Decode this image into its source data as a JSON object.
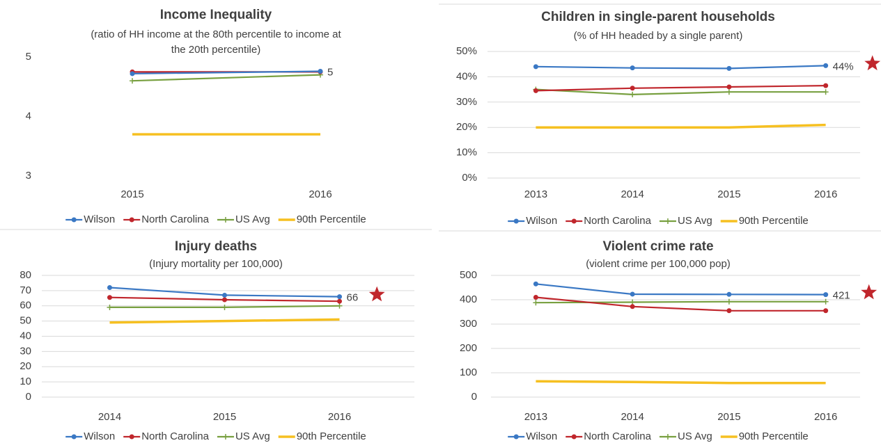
{
  "chart_data": [
    {
      "type": "line",
      "title": "Income Inequality",
      "subtitle": [
        "(ratio of HH income at the 80th percentile to income at",
        "the 20th percentile)"
      ],
      "categories": [
        "2015",
        "2016"
      ],
      "series": [
        {
          "name": "Wilson",
          "color": "#3a78c4",
          "marker": "circle",
          "values": [
            4.72,
            4.76
          ],
          "value_labels": [
            null,
            "5"
          ]
        },
        {
          "name": "North Carolina",
          "color": "#c0262c",
          "marker": "circle",
          "values": [
            4.75,
            4.75
          ]
        },
        {
          "name": "US Avg",
          "color": "#78a040",
          "marker": "plus",
          "values": [
            4.6,
            4.7
          ]
        },
        {
          "name": "90th Percentile",
          "color": "#f6c021",
          "values": [
            3.7,
            3.7
          ]
        }
      ],
      "ylim": [
        3,
        5
      ],
      "yticks": [
        3,
        4,
        5
      ],
      "grid": false,
      "legend": "bottom"
    },
    {
      "type": "line",
      "title": "Children in single-parent households",
      "subtitle": [
        "(% of HH headed by a single parent)"
      ],
      "categories": [
        "2013",
        "2014",
        "2015",
        "2016"
      ],
      "series": [
        {
          "name": "Wilson",
          "color": "#3a78c4",
          "marker": "circle",
          "values": [
            44,
            43.5,
            43.3,
            44.4
          ],
          "value_labels": [
            null,
            null,
            null,
            "44%"
          ]
        },
        {
          "name": "North Carolina",
          "color": "#c0262c",
          "marker": "circle",
          "values": [
            34.5,
            35.5,
            36,
            36.5
          ]
        },
        {
          "name": "US Avg",
          "color": "#78a040",
          "marker": "plus",
          "values": [
            35,
            33,
            34,
            34
          ]
        },
        {
          "name": "90th Percentile",
          "color": "#f6c021",
          "values": [
            20,
            20,
            20,
            21
          ]
        }
      ],
      "ylim": [
        0,
        50
      ],
      "yticks": [
        {
          "value": 0,
          "label": "0%"
        },
        {
          "value": 10,
          "label": "10%"
        },
        {
          "value": 20,
          "label": "20%"
        },
        {
          "value": 30,
          "label": "30%"
        },
        {
          "value": 40,
          "label": "40%"
        },
        {
          "value": 50,
          "label": "50%"
        }
      ],
      "grid": true,
      "legend": "bottom"
    },
    {
      "type": "line",
      "title": "Injury deaths",
      "subtitle": [
        "(Injury mortality per 100,000)"
      ],
      "categories": [
        "2014",
        "2015",
        "2016"
      ],
      "series": [
        {
          "name": "Wilson",
          "color": "#3a78c4",
          "marker": "circle",
          "values": [
            72,
            67,
            66
          ],
          "value_labels": [
            null,
            null,
            "66"
          ]
        },
        {
          "name": "North Carolina",
          "color": "#c0262c",
          "marker": "circle",
          "values": [
            65.5,
            64,
            63
          ]
        },
        {
          "name": "US Avg",
          "color": "#78a040",
          "marker": "plus",
          "values": [
            59,
            59,
            60
          ]
        },
        {
          "name": "90th Percentile",
          "color": "#f6c021",
          "values": [
            49,
            50,
            51
          ]
        }
      ],
      "ylim": [
        0,
        80
      ],
      "yticks": [
        0,
        10,
        20,
        30,
        40,
        50,
        60,
        70,
        80
      ],
      "grid": true,
      "legend": "bottom"
    },
    {
      "type": "line",
      "title": "Violent crime rate",
      "subtitle": [
        "(violent crime per 100,000 pop)"
      ],
      "categories": [
        "2013",
        "2014",
        "2015",
        "2016"
      ],
      "series": [
        {
          "name": "Wilson",
          "color": "#3a78c4",
          "marker": "circle",
          "values": [
            465,
            423,
            422,
            421
          ],
          "value_labels": [
            null,
            null,
            null,
            "421"
          ]
        },
        {
          "name": "North Carolina",
          "color": "#c0262c",
          "marker": "circle",
          "values": [
            410,
            372,
            355,
            355
          ]
        },
        {
          "name": "US Avg",
          "color": "#78a040",
          "marker": "plus",
          "values": [
            388,
            390,
            392,
            392
          ]
        },
        {
          "name": "90th Percentile",
          "color": "#f6c021",
          "values": [
            65,
            62,
            58,
            58
          ]
        }
      ],
      "ylim": [
        0,
        500
      ],
      "yticks": [
        0,
        100,
        200,
        300,
        400,
        500
      ],
      "grid": true,
      "legend": "bottom"
    }
  ]
}
